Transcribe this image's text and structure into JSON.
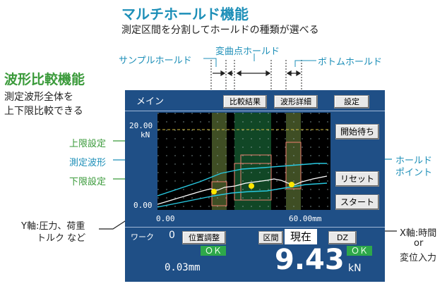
{
  "header": {
    "title": "マルチホールド機能",
    "subtitle": "測定区間を分割してホールドの種類が選べる"
  },
  "left_panel": {
    "title": "波形比較機能",
    "desc_line1": "測定波形全体を",
    "desc_line2": "上下限比較できる"
  },
  "callouts": {
    "sample_hold": "サンプルホールド",
    "inflection_hold": "変曲点ホールド",
    "bottom_hold": "ボトムホールド",
    "upper_limit": "上限設定",
    "measured_wave": "測定波形",
    "lower_limit": "下限設定",
    "hold_point_1": "ホールド",
    "hold_point_2": "ポイント",
    "y_axis_1": "Y軸:圧力、荷重",
    "y_axis_2": "トルク など",
    "x_axis_1": "X軸:時間",
    "x_axis_2": "or",
    "x_axis_3": "変位入力"
  },
  "screen": {
    "title": "メイン",
    "buttons": {
      "compare_result": "比較結果",
      "wave_detail": "波形詳細",
      "settings": "設定",
      "start_wait": "開始待ち",
      "reset": "リセット",
      "start": "スタート",
      "position_adjust": "位置調整",
      "interval": "区間",
      "current": "現在",
      "dz": "DZ"
    },
    "plot": {
      "y_max": "20.00",
      "y_unit": "kN",
      "y_min": "0.00",
      "x_min": "0.00",
      "x_max": "60.00mm"
    },
    "work_label": "ワーク",
    "work_value": "0",
    "ok_left": "ＯＫ",
    "ok_right": "ＯＫ",
    "position_value": "0.03mm",
    "main_value": "9.43",
    "main_unit": "kN"
  },
  "colors": {
    "accent_teal": "#1d8fb8",
    "accent_green": "#3a9a3a",
    "screen_bg": "#1f4f86",
    "ok_green": "#2ea84a"
  },
  "chart_data": {
    "type": "line",
    "x_range": [
      0,
      60
    ],
    "y_range": [
      0,
      20
    ],
    "x_unit": "mm",
    "y_unit": "kN"
  }
}
